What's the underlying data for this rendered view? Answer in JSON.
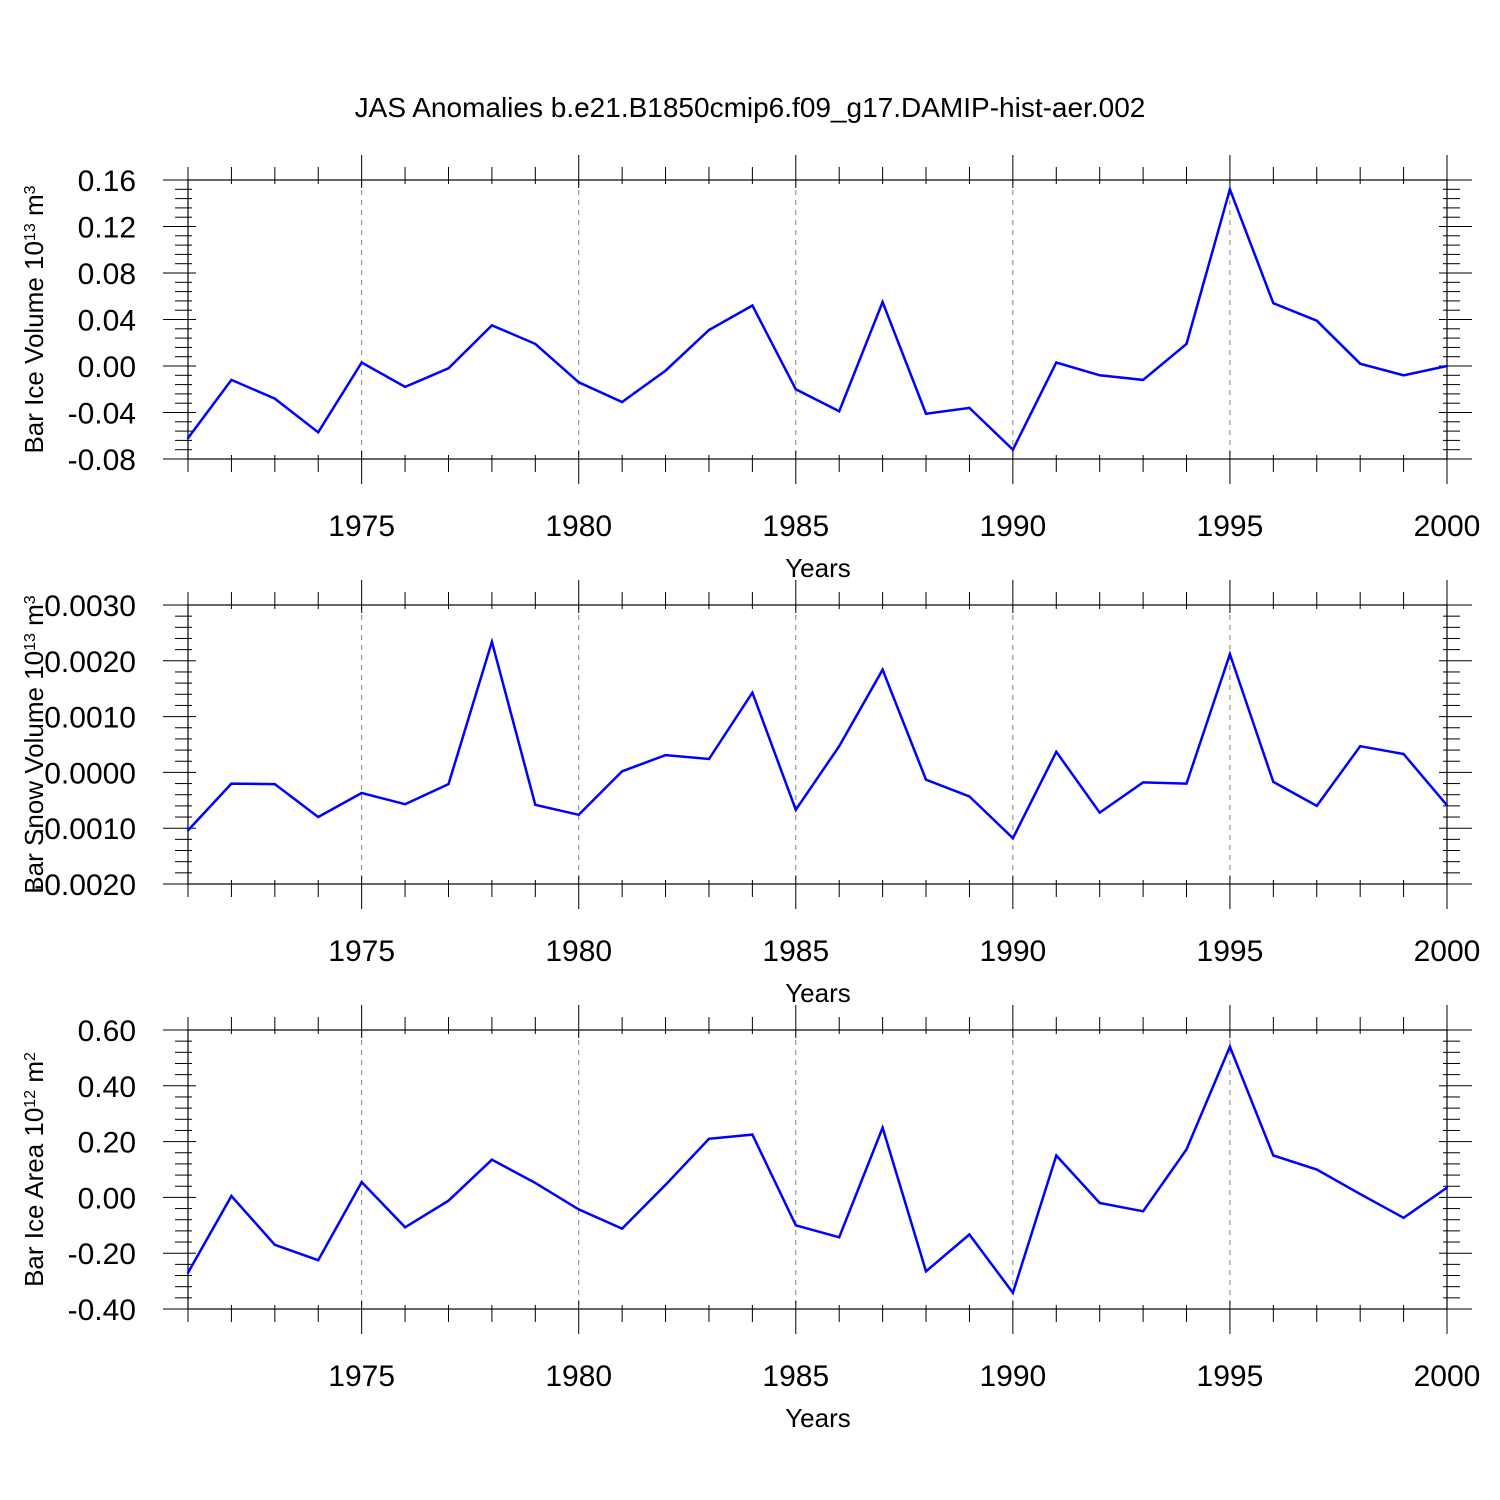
{
  "title": "JAS Anomalies b.e21.B1850cmip6.f09_g17.DAMIP-hist-aer.002",
  "colors": {
    "line": "#0000ff",
    "axis": "#000000",
    "grid": "#808080"
  },
  "chart_data": [
    {
      "type": "line",
      "ylabel": {
        "base": "Bar Ice Volume 10",
        "exponent": "13",
        "unit": " m",
        "unit_exponent": "3"
      },
      "xlabel": "Years",
      "xlim": [
        1971,
        2000
      ],
      "ylim": [
        -0.08,
        0.16
      ],
      "yticks": [
        -0.08,
        -0.04,
        0.0,
        0.04,
        0.08,
        0.12,
        0.16
      ],
      "ytick_labels": [
        "-0.08",
        "-0.04",
        "0.00",
        "0.04",
        "0.08",
        "0.12",
        "0.16"
      ],
      "xticks": [
        1975,
        1980,
        1985,
        1990,
        1995,
        2000
      ],
      "xtick_labels": [
        "1975",
        "1980",
        "1985",
        "1990",
        "1995",
        "2000"
      ],
      "grid": "vertical dashed at labeled years",
      "x": [
        1971,
        1972,
        1973,
        1974,
        1975,
        1976,
        1977,
        1978,
        1979,
        1980,
        1981,
        1982,
        1983,
        1984,
        1985,
        1986,
        1987,
        1988,
        1989,
        1990,
        1991,
        1992,
        1993,
        1994,
        1995,
        1996,
        1997,
        1998,
        1999,
        2000
      ],
      "series": [
        {
          "values": [
            -0.062,
            -0.012,
            -0.028,
            -0.057,
            0.003,
            -0.018,
            -0.002,
            0.035,
            0.019,
            -0.014,
            -0.031,
            -0.004,
            0.031,
            0.052,
            -0.02,
            -0.039,
            0.055,
            -0.041,
            -0.036,
            -0.072,
            0.003,
            -0.008,
            -0.012,
            0.019,
            0.152,
            0.054,
            0.039,
            0.002,
            -0.008,
            0.0
          ]
        }
      ]
    },
    {
      "type": "line",
      "ylabel": {
        "base": "Bar Snow Volume 10",
        "exponent": "13",
        "unit": " m",
        "unit_exponent": "3"
      },
      "xlabel": "Years",
      "xlim": [
        1971,
        2000
      ],
      "ylim": [
        -0.002,
        0.003
      ],
      "yticks": [
        -0.002,
        -0.001,
        0.0,
        0.001,
        0.002,
        0.003
      ],
      "ytick_labels": [
        "-0.0020",
        "-0.0010",
        "0.0000",
        "0.0010",
        "0.0020",
        "0.0030"
      ],
      "xticks": [
        1975,
        1980,
        1985,
        1990,
        1995,
        2000
      ],
      "xtick_labels": [
        "1975",
        "1980",
        "1985",
        "1990",
        "1995",
        "2000"
      ],
      "grid": "vertical dashed at labeled years",
      "x": [
        1971,
        1972,
        1973,
        1974,
        1975,
        1976,
        1977,
        1978,
        1979,
        1980,
        1981,
        1982,
        1983,
        1984,
        1985,
        1986,
        1987,
        1988,
        1989,
        1990,
        1991,
        1992,
        1993,
        1994,
        1995,
        1996,
        1997,
        1998,
        1999,
        2000
      ],
      "series": [
        {
          "values": [
            -0.00104,
            -0.0002,
            -0.00021,
            -0.0008,
            -0.00037,
            -0.00057,
            -0.00021,
            0.00234,
            -0.00058,
            -0.00076,
            2e-05,
            0.00031,
            0.00024,
            0.00143,
            -0.00067,
            0.00047,
            0.00184,
            -0.00013,
            -0.00043,
            -0.00118,
            0.00037,
            -0.00072,
            -0.00018,
            -0.0002,
            0.00212,
            -0.00017,
            -0.0006,
            0.00047,
            0.00033,
            -0.00059
          ]
        }
      ]
    },
    {
      "type": "line",
      "ylabel": {
        "base": "Bar Ice Area 10",
        "exponent": "12",
        "unit": " m",
        "unit_exponent": "2"
      },
      "xlabel": "Years",
      "xlim": [
        1971,
        2000
      ],
      "ylim": [
        -0.4,
        0.6
      ],
      "yticks": [
        -0.4,
        -0.2,
        0.0,
        0.2,
        0.4,
        0.6
      ],
      "ytick_labels": [
        "-0.40",
        "-0.20",
        "0.00",
        "0.20",
        "0.40",
        "0.60"
      ],
      "xticks": [
        1975,
        1980,
        1985,
        1990,
        1995,
        2000
      ],
      "xtick_labels": [
        "1975",
        "1980",
        "1985",
        "1990",
        "1995",
        "2000"
      ],
      "grid": "vertical dashed at labeled years",
      "x": [
        1971,
        1972,
        1973,
        1974,
        1975,
        1976,
        1977,
        1978,
        1979,
        1980,
        1981,
        1982,
        1983,
        1984,
        1985,
        1986,
        1987,
        1988,
        1989,
        1990,
        1991,
        1992,
        1993,
        1994,
        1995,
        1996,
        1997,
        1998,
        1999,
        2000
      ],
      "series": [
        {
          "values": [
            -0.27,
            0.005,
            -0.17,
            -0.225,
            0.055,
            -0.107,
            -0.012,
            0.135,
            0.052,
            -0.043,
            -0.112,
            0.045,
            0.21,
            0.225,
            -0.1,
            -0.143,
            0.25,
            -0.265,
            -0.133,
            -0.342,
            0.15,
            -0.02,
            -0.05,
            0.172,
            0.54,
            0.15,
            0.1,
            0.012,
            -0.073,
            0.035
          ]
        }
      ]
    }
  ]
}
